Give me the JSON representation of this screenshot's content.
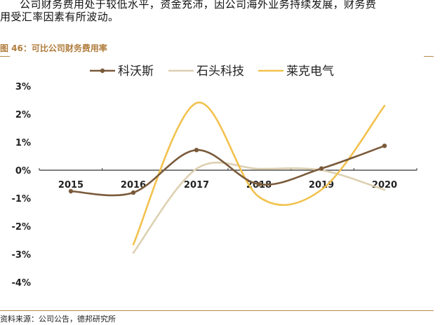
{
  "intro": {
    "line1": "公司财务费用处于较低水平，资金充沛，因公司海外业务持续发展，财务费",
    "line2": "用受汇率因素有所波动。"
  },
  "figure": {
    "title": "图 46：可比公司财务费用率",
    "source": "资料来源：公司公告，德邦研究所"
  },
  "chart_data": {
    "type": "line",
    "title": "",
    "xlabel": "",
    "ylabel": "",
    "categories": [
      "2015",
      "2016",
      "2017",
      "2018",
      "2019",
      "2020"
    ],
    "yticks": [
      "3%",
      "2%",
      "1%",
      "0%",
      "-1%",
      "-2%",
      "-3%",
      "-4%"
    ],
    "ylim": [
      -4,
      3
    ],
    "grid": false,
    "legend_position": "top",
    "smooth": true,
    "series": [
      {
        "name": "科沃斯",
        "color": "#7a5a3a",
        "markers": true,
        "values": [
          -0.75,
          -0.8,
          0.72,
          -0.5,
          0.06,
          0.87
        ]
      },
      {
        "name": "石头科技",
        "color": "#ddd0b2",
        "markers": false,
        "values": [
          null,
          -2.95,
          0.05,
          0.05,
          0.0,
          -0.7
        ]
      },
      {
        "name": "莱克电气",
        "color": "#f2c24e",
        "markers": false,
        "values": [
          null,
          -2.65,
          2.4,
          -0.95,
          -0.7,
          2.3
        ]
      }
    ]
  }
}
